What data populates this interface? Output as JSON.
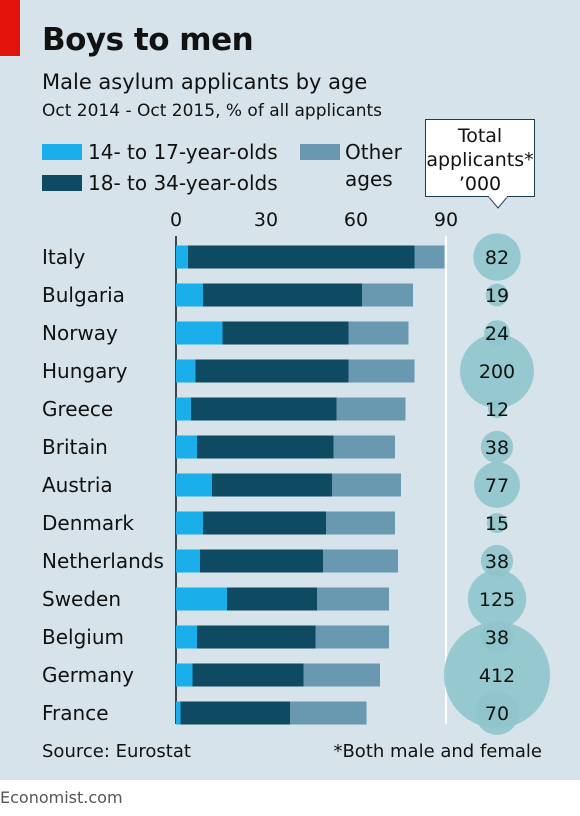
{
  "header": {
    "title": "Boys to men",
    "subtitle": "Male asylum applicants by age",
    "period": "Oct 2014 - Oct 2015, % of all applicants"
  },
  "legend": {
    "teen": "14- to 17-year-olds",
    "young": "18- to 34-year-olds",
    "other_line1": "Other",
    "other_line2": "ages"
  },
  "callout": {
    "line1": "Total",
    "line2": "applicants*",
    "line3": "’000"
  },
  "colors": {
    "teen": "#1aaeea",
    "young": "#0e4a62",
    "other": "#6899b0",
    "bubble": "#8fc4cc",
    "panel": "#d6e3ea"
  },
  "chart_data": {
    "type": "bar",
    "stacked": true,
    "orientation": "horizontal",
    "xlim": [
      0,
      90
    ],
    "xticks": [
      "0",
      "30",
      "60",
      "90"
    ],
    "categories": [
      "Italy",
      "Bulgaria",
      "Norway",
      "Hungary",
      "Greece",
      "Britain",
      "Austria",
      "Denmark",
      "Netherlands",
      "Sweden",
      "Belgium",
      "Germany",
      "France"
    ],
    "series": [
      {
        "name": "14- to 17-year-olds",
        "values": [
          4,
          9,
          15.5,
          6.5,
          5,
          7,
          12,
          9,
          8,
          17,
          7,
          5.5,
          1.5
        ]
      },
      {
        "name": "18- to 34-year-olds",
        "values": [
          75.5,
          53,
          42,
          51,
          48.5,
          45.5,
          40,
          41,
          41,
          30,
          39.5,
          37,
          36.5
        ]
      },
      {
        "name": "Other ages",
        "values": [
          10,
          17,
          20,
          22,
          23,
          20.5,
          23,
          23,
          25,
          24,
          24.5,
          25.5,
          25.5
        ]
      }
    ],
    "totals": {
      "label": "Total applicants* ’000",
      "values": [
        82,
        19,
        24,
        200,
        12,
        38,
        77,
        15,
        38,
        125,
        38,
        412,
        70
      ]
    },
    "grid": false
  },
  "footer": {
    "source": "Source: Eurostat",
    "note": "*Both male and female",
    "brand": "Economist.com"
  }
}
